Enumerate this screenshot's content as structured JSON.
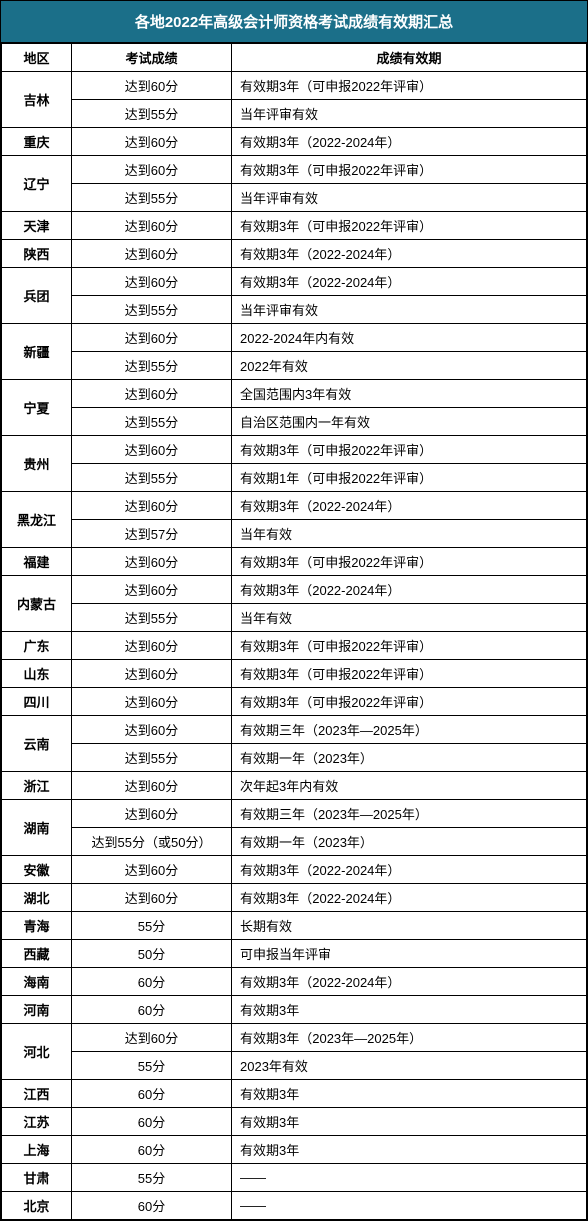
{
  "title": "各地2022年高级会计师资格考试成绩有效期汇总",
  "headers": {
    "region": "地区",
    "score": "考试成绩",
    "valid": "成绩有效期"
  },
  "rows": [
    {
      "region": "吉林",
      "rowspan": 2,
      "score": "达到60分",
      "valid": "有效期3年（可申报2022年评审）"
    },
    {
      "score": "达到55分",
      "valid": "当年评审有效"
    },
    {
      "region": "重庆",
      "rowspan": 1,
      "score": "达到60分",
      "valid": "有效期3年（2022-2024年）"
    },
    {
      "region": "辽宁",
      "rowspan": 2,
      "score": "达到60分",
      "valid": "有效期3年（可申报2022年评审）"
    },
    {
      "score": "达到55分",
      "valid": "当年评审有效"
    },
    {
      "region": "天津",
      "rowspan": 1,
      "score": "达到60分",
      "valid": "有效期3年（可申报2022年评审）"
    },
    {
      "region": "陕西",
      "rowspan": 1,
      "score": "达到60分",
      "valid": "有效期3年（2022-2024年）"
    },
    {
      "region": "兵团",
      "rowspan": 2,
      "score": "达到60分",
      "valid": "有效期3年（2022-2024年）"
    },
    {
      "score": "达到55分",
      "valid": "当年评审有效"
    },
    {
      "region": "新疆",
      "rowspan": 2,
      "score": "达到60分",
      "valid": "2022-2024年内有效"
    },
    {
      "score": "达到55分",
      "valid": "2022年有效"
    },
    {
      "region": "宁夏",
      "rowspan": 2,
      "score": "达到60分",
      "valid": "全国范围内3年有效"
    },
    {
      "score": "达到55分",
      "valid": "自治区范围内一年有效"
    },
    {
      "region": "贵州",
      "rowspan": 2,
      "score": "达到60分",
      "valid": "有效期3年（可申报2022年评审）"
    },
    {
      "score": "达到55分",
      "valid": "有效期1年（可申报2022年评审）"
    },
    {
      "region": "黑龙江",
      "rowspan": 2,
      "score": "达到60分",
      "valid": "有效期3年（2022-2024年）"
    },
    {
      "score": "达到57分",
      "valid": "当年有效"
    },
    {
      "region": "福建",
      "rowspan": 1,
      "score": "达到60分",
      "valid": "有效期3年（可申报2022年评审）"
    },
    {
      "region": "内蒙古",
      "rowspan": 2,
      "score": "达到60分",
      "valid": "有效期3年（2022-2024年）"
    },
    {
      "score": "达到55分",
      "valid": "当年有效"
    },
    {
      "region": "广东",
      "rowspan": 1,
      "score": "达到60分",
      "valid": "有效期3年（可申报2022年评审）"
    },
    {
      "region": "山东",
      "rowspan": 1,
      "score": "达到60分",
      "valid": "有效期3年（可申报2022年评审）"
    },
    {
      "region": "四川",
      "rowspan": 1,
      "score": "达到60分",
      "valid": "有效期3年（可申报2022年评审）"
    },
    {
      "region": "云南",
      "rowspan": 2,
      "score": "达到60分",
      "valid": "有效期三年（2023年—2025年）"
    },
    {
      "score": "达到55分",
      "valid": "有效期一年（2023年）"
    },
    {
      "region": "浙江",
      "rowspan": 1,
      "score": "达到60分",
      "valid": "次年起3年内有效"
    },
    {
      "region": "湖南",
      "rowspan": 2,
      "score": "达到60分",
      "valid": "有效期三年（2023年—2025年）"
    },
    {
      "score": "达到55分（或50分）",
      "valid": "有效期一年（2023年）"
    },
    {
      "region": "安徽",
      "rowspan": 1,
      "score": "达到60分",
      "valid": "有效期3年（2022-2024年）"
    },
    {
      "region": "湖北",
      "rowspan": 1,
      "score": "达到60分",
      "valid": "有效期3年（2022-2024年）"
    },
    {
      "region": "青海",
      "rowspan": 1,
      "score": "55分",
      "valid": "长期有效"
    },
    {
      "region": "西藏",
      "rowspan": 1,
      "score": "50分",
      "valid": "可申报当年评审"
    },
    {
      "region": "海南",
      "rowspan": 1,
      "score": "60分",
      "valid": "有效期3年（2022-2024年）"
    },
    {
      "region": "河南",
      "rowspan": 1,
      "score": "60分",
      "valid": "有效期3年"
    },
    {
      "region": "河北",
      "rowspan": 2,
      "score": "达到60分",
      "valid": "有效期3年（2023年—2025年）"
    },
    {
      "score": "55分",
      "valid": "2023年有效"
    },
    {
      "region": "江西",
      "rowspan": 1,
      "score": "60分",
      "valid": "有效期3年"
    },
    {
      "region": "江苏",
      "rowspan": 1,
      "score": "60分",
      "valid": "有效期3年"
    },
    {
      "region": "上海",
      "rowspan": 1,
      "score": "60分",
      "valid": "有效期3年"
    },
    {
      "region": "甘肃",
      "rowspan": 1,
      "score": "55分",
      "valid": "——"
    },
    {
      "region": "北京",
      "rowspan": 1,
      "score": "60分",
      "valid": "——"
    }
  ]
}
